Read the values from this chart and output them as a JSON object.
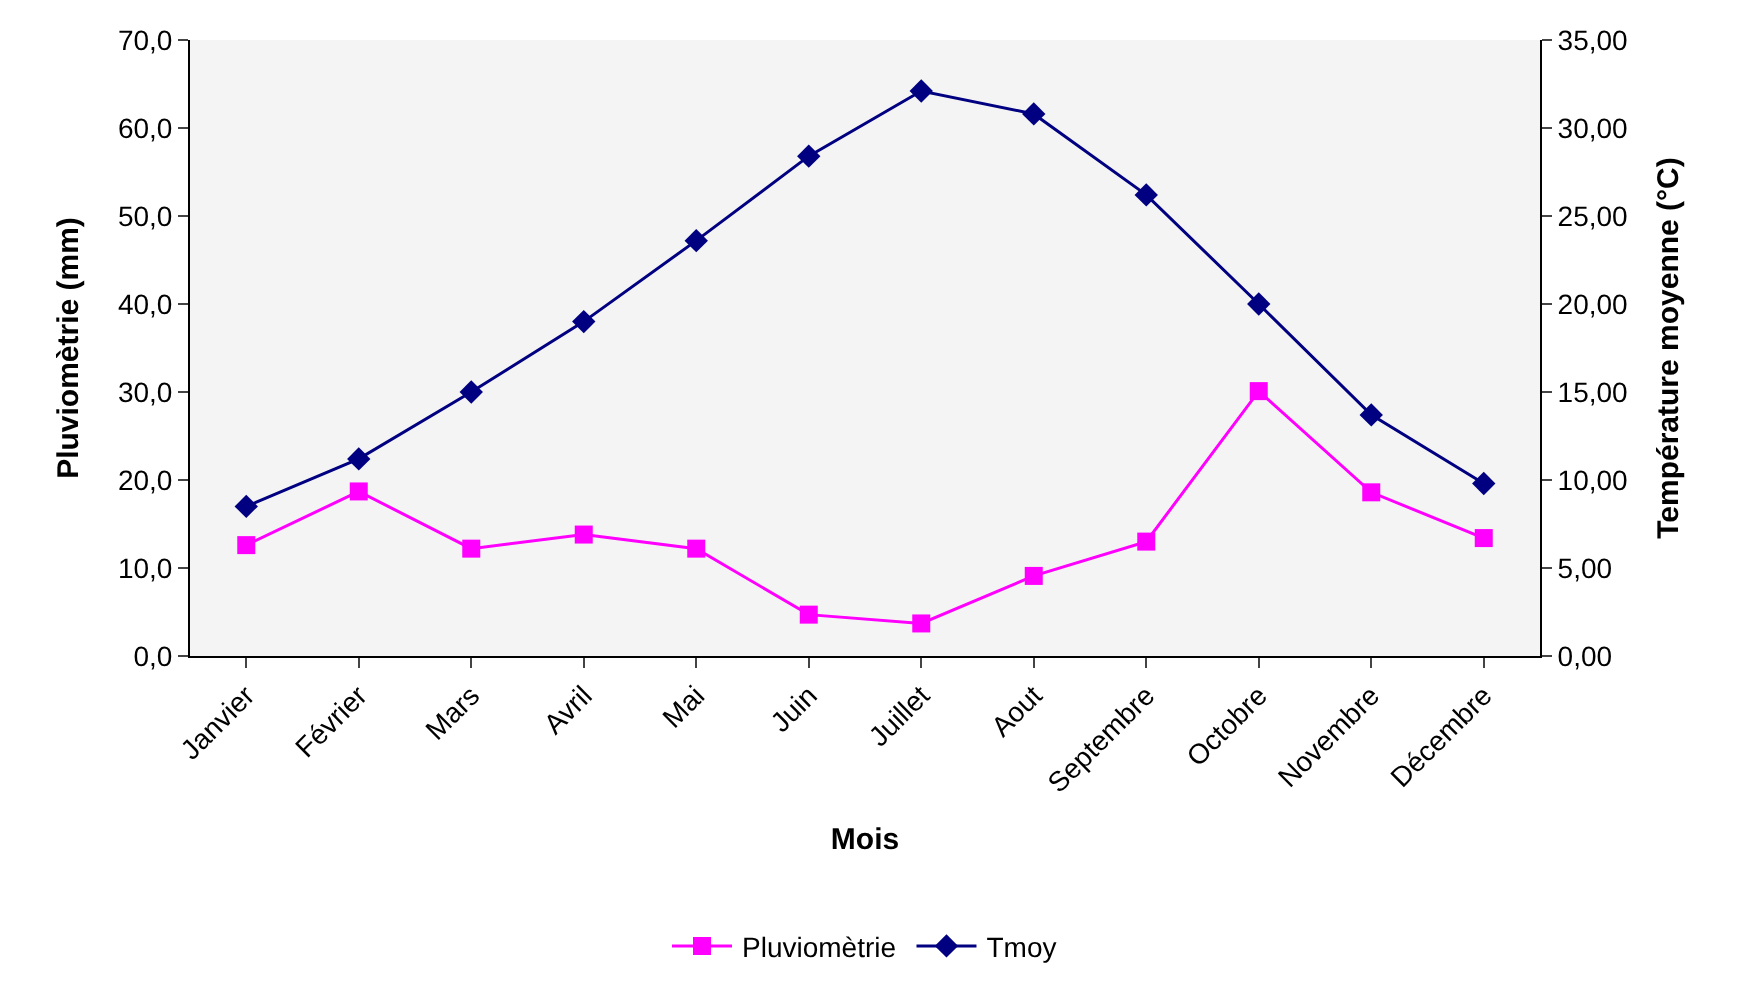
{
  "chart_data": {
    "type": "line",
    "xlabel": "Mois",
    "ylabel": "Pluviomètrie (mm)",
    "y2label": "Température moyenne (°C)",
    "categories": [
      "Janvier",
      "Février",
      "Mars",
      "Avril",
      "Mai",
      "Juin",
      "Juillet",
      "Aout",
      "Septembre",
      "Octobre",
      "Novembre",
      "Décembre"
    ],
    "series": [
      {
        "name": "Pluviomètrie",
        "color": "#ff00ff",
        "marker": "square",
        "values": [
          12.6,
          18.7,
          12.2,
          13.8,
          12.2,
          4.7,
          3.7,
          9.1,
          13.0,
          30.1,
          18.6,
          13.4
        ]
      },
      {
        "name": "Tmoy",
        "color": "#000080",
        "marker": "diamond",
        "axis": "y2",
        "values": [
          8.5,
          11.2,
          15.0,
          19.0,
          23.6,
          28.4,
          32.1,
          30.8,
          26.2,
          20.0,
          13.7,
          9.8
        ]
      }
    ],
    "ylim": [
      0,
      70
    ],
    "yticks": [
      {
        "value": 0,
        "label": "0,0"
      },
      {
        "value": 10,
        "label": "10,0"
      },
      {
        "value": 20,
        "label": "20,0"
      },
      {
        "value": 30,
        "label": "30,0"
      },
      {
        "value": 40,
        "label": "40,0"
      },
      {
        "value": 50,
        "label": "50,0"
      },
      {
        "value": 60,
        "label": "60,0"
      },
      {
        "value": 70,
        "label": "70,0"
      }
    ],
    "y2lim": [
      0,
      35
    ],
    "y2ticks": [
      {
        "value": 0,
        "label": "0,00"
      },
      {
        "value": 5,
        "label": "5,00"
      },
      {
        "value": 10,
        "label": "10,00"
      },
      {
        "value": 15,
        "label": "15,00"
      },
      {
        "value": 20,
        "label": "20,00"
      },
      {
        "value": 25,
        "label": "25,00"
      },
      {
        "value": 30,
        "label": "30,00"
      },
      {
        "value": 35,
        "label": "35,00"
      }
    ],
    "grid": false,
    "legend": "bottom",
    "line_style": "solid"
  }
}
